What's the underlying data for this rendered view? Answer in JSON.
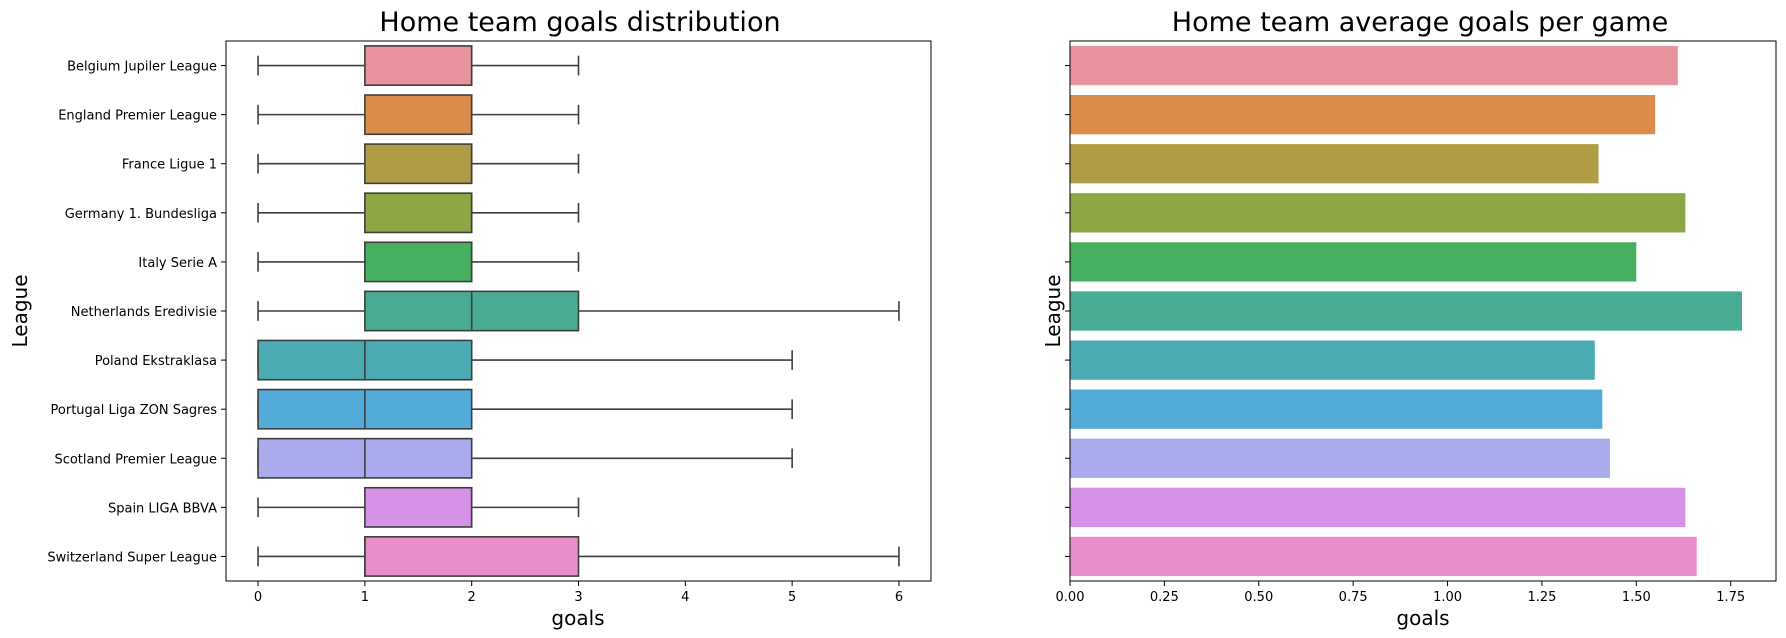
{
  "chart_data": [
    {
      "type": "box",
      "orientation": "horizontal",
      "title": "Home team goals distribution",
      "xlabel": "goals",
      "ylabel": "League",
      "xlim": [
        -0.3,
        6.3
      ],
      "xticks": [
        0,
        1,
        2,
        3,
        4,
        5,
        6
      ],
      "grid": false,
      "categories": [
        "Belgium Jupiler League",
        "England Premier League",
        "France Ligue 1",
        "Germany 1. Bundesliga",
        "Italy Serie A",
        "Netherlands Eredivisie",
        "Poland Ekstraklasa",
        "Portugal Liga ZON Sagres",
        "Scotland Premier League",
        "Spain LIGA BBVA",
        "Switzerland Super League"
      ],
      "boxes": [
        {
          "min": 0,
          "q1": 1,
          "median": 2,
          "q3": 2,
          "max": 3
        },
        {
          "min": 0,
          "q1": 1,
          "median": 2,
          "q3": 2,
          "max": 3
        },
        {
          "min": 0,
          "q1": 1,
          "median": 2,
          "q3": 2,
          "max": 3
        },
        {
          "min": 0,
          "q1": 1,
          "median": 2,
          "q3": 2,
          "max": 3
        },
        {
          "min": 0,
          "q1": 1,
          "median": 2,
          "q3": 2,
          "max": 3
        },
        {
          "min": 0,
          "q1": 1,
          "median": 2,
          "q3": 3,
          "max": 6
        },
        {
          "min": 0,
          "q1": 0,
          "median": 1,
          "q3": 2,
          "max": 5
        },
        {
          "min": 0,
          "q1": 0,
          "median": 1,
          "q3": 2,
          "max": 5
        },
        {
          "min": 0,
          "q1": 0,
          "median": 1,
          "q3": 2,
          "max": 5
        },
        {
          "min": 0,
          "q1": 1,
          "median": 2,
          "q3": 2,
          "max": 3
        },
        {
          "min": 0,
          "q1": 1,
          "median": 1,
          "q3": 3,
          "max": 6
        }
      ],
      "colors": [
        "#e8939e",
        "#dc8c4a",
        "#b09c45",
        "#8ea745",
        "#47b060",
        "#49ab94",
        "#4aabb2",
        "#52abd8",
        "#a9abec",
        "#d692e6",
        "#e98ec8"
      ]
    },
    {
      "type": "bar",
      "orientation": "horizontal",
      "title": "Home team average goals per game",
      "xlabel": "goals",
      "ylabel": "League",
      "xlim": [
        0,
        1.87
      ],
      "xticks": [
        0.0,
        0.25,
        0.5,
        0.75,
        1.0,
        1.25,
        1.5,
        1.75
      ],
      "xtick_labels": [
        "0.00",
        "0.25",
        "0.50",
        "0.75",
        "1.00",
        "1.25",
        "1.50",
        "1.75"
      ],
      "grid": false,
      "values": [
        1.61,
        1.55,
        1.4,
        1.63,
        1.5,
        1.78,
        1.39,
        1.41,
        1.43,
        1.63,
        1.66
      ],
      "colors": [
        "#e8939e",
        "#dc8c4a",
        "#b09c45",
        "#8ea745",
        "#47b060",
        "#49ab94",
        "#4aabb2",
        "#52abd8",
        "#a9abec",
        "#d692e6",
        "#e98ec8"
      ]
    }
  ]
}
